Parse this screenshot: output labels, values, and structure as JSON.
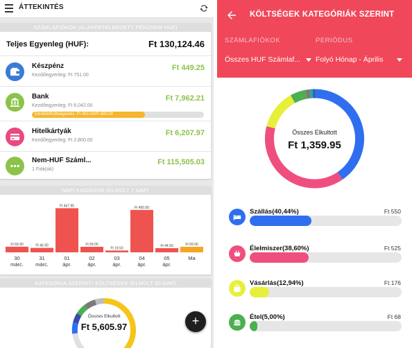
{
  "overview": {
    "title": "ÁTTEKINTÉS",
    "accounts_header": "SZÁMLAFIÓKOK (ALAPÉRTELMEZETT PÉNZNEM HUF)",
    "total_label": "Teljes Egyenleg (HUF):",
    "total_value": "Ft 130,124.46",
    "accounts": [
      {
        "name": "Készpénz",
        "sub": "Kezdőegyenleg: Ft 751.00",
        "value": "Ft 449.25",
        "color": "#3a7bd5",
        "icon": "wallet-icon"
      },
      {
        "name": "Bank",
        "sub": "Kezdőegyenleg: Ft 6,042.00",
        "value": "Ft 7,962.21",
        "color": "#8bc34a",
        "icon": "bank-icon"
      },
      {
        "name": "Hitelkártyák",
        "sub": "Kezdőegyenleg: Ft 2,800.00",
        "value": "Ft 6,207.97",
        "color": "#e84a7f",
        "icon": "credit-card-icon"
      },
      {
        "name": "Nem-HUF Száml...",
        "sub": "1 Fiók(ok)",
        "value": "Ft 115,505.03",
        "color": "#8bc34a",
        "icon": "more-icon"
      }
    ],
    "bank_progress_text": "Elköltött/Költségvetés: Ft 450.00/Ft 685.00",
    "bank_progress": 0.657,
    "daily_header": "NAPI KIADÁSOK (ELMÚLT 7 NAP)",
    "category_header": "KATEGÓRIA SZERINTI KÖLTSÉGEK (ELMÚLT 30 NAP)",
    "category_total_label": "Összes Elkultott",
    "category_total_value": "Ft 5,605.97"
  },
  "chart_data": [
    {
      "type": "bar",
      "title": "NAPI KIADÁSOK (ELMÚLT 7 NAP)",
      "categories": [
        "30 márc.",
        "31 márc.",
        "01 ápr.",
        "02 ápr.",
        "03 ápr.",
        "04 ápr.",
        "05 ápr.",
        "Ma"
      ],
      "values": [
        59.9,
        46.9,
        467.95,
        59.0,
        19.5,
        450.0,
        44.5,
        59.0
      ],
      "labels": [
        "Ft 59.90",
        "Ft 46.90",
        "Ft 467.95",
        "Ft 59.00",
        "Ft 19.50",
        "Ft 450.00",
        "Ft 44.50",
        "Ft 59.00"
      ],
      "colors": [
        "#ef5350",
        "#ef5350",
        "#ef5350",
        "#ef5350",
        "#ef5350",
        "#ef5350",
        "#ef5350",
        "#f5a623"
      ],
      "ylim": [
        0,
        500
      ]
    },
    {
      "type": "pie",
      "title": "KÖLTSÉGEK KATEGÓRIÁK SZERINT",
      "total_label": "Összes Elkultott",
      "total_value": "Ft 1,359.95",
      "slices": [
        {
          "name": "Szállás",
          "percent": 40.44,
          "value": "Ft 550",
          "color": "#2f6fef"
        },
        {
          "name": "Élelmiszer",
          "percent": 38.6,
          "value": "Ft 525",
          "color": "#ef4f7e"
        },
        {
          "name": "Vásárlás",
          "percent": 12.94,
          "value": "Ft 176",
          "color": "#e6f03a"
        },
        {
          "name": "Étel",
          "percent": 5.0,
          "value": "Ft 68",
          "color": "#4caf50"
        },
        {
          "name": "",
          "percent": 1.5,
          "value": "",
          "color": "#7a7a7a"
        },
        {
          "name": "",
          "percent": 1.0,
          "value": "",
          "color": "#26a69a"
        },
        {
          "name": "",
          "percent": 0.52,
          "value": "",
          "color": "#3949ab"
        }
      ]
    }
  ],
  "category_view": {
    "title": "KÖLTSÉGEK KATEGÓRIÁK SZERINT",
    "accounts_label": "SZÁMLAFIÓKOK",
    "period_label": "PERIÓDUS",
    "accounts_value": "Összes HUF Számlaf...",
    "period_value": "Folyó Hónap - Április",
    "center_label": "Összes Elkultott",
    "center_value": "Ft 1,359.95",
    "rows": [
      {
        "label": "Szállás(40,44%)",
        "value": "Ft 550",
        "fraction": 0.4044,
        "color": "#2f6fef",
        "icon": "bed-icon"
      },
      {
        "label": "Élelmiszer(38,60%)",
        "value": "Ft 525",
        "fraction": 0.386,
        "color": "#ef4f7e",
        "icon": "food-basket-icon"
      },
      {
        "label": "Vásárlás(12,94%)",
        "value": "Ft 176",
        "fraction": 0.1294,
        "color": "#e6f03a",
        "icon": "shopping-bag-icon"
      },
      {
        "label": "Étel(5,00%)",
        "value": "Ft 68",
        "fraction": 0.05,
        "color": "#4caf50",
        "icon": "burger-icon"
      }
    ]
  }
}
